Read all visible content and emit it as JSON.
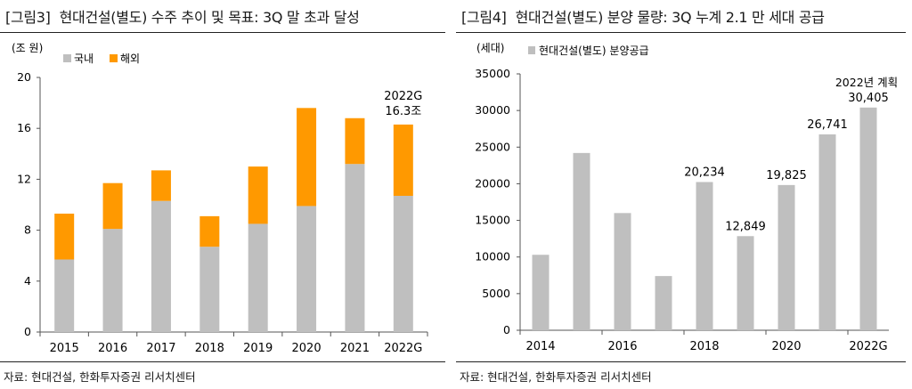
{
  "panels": [
    {
      "figure_number": "[그림3]",
      "title": "현대건설(별도) 수주 추이 및 목표: 3Q 말 초과 달성",
      "source": "자료: 현대건설, 한화투자증권 리서치센터"
    },
    {
      "figure_number": "[그림4]",
      "title": "현대건설(별도) 분양 물량: 3Q 누계 2.1 만 세대 공급",
      "source": "자료: 현대건설, 한화투자증권 리서치센터"
    }
  ],
  "chart_data": [
    {
      "type": "bar",
      "stacked": true,
      "unit_label": "(조 원)",
      "categories": [
        "2015",
        "2016",
        "2017",
        "2018",
        "2019",
        "2020",
        "2021",
        "2022G"
      ],
      "series": [
        {
          "name": "국내",
          "color": "#bfbfbf",
          "values": [
            5.7,
            8.1,
            10.3,
            6.7,
            8.5,
            9.9,
            13.2,
            10.7
          ]
        },
        {
          "name": "해외",
          "color": "#ff9900",
          "values": [
            3.6,
            3.6,
            2.4,
            2.4,
            4.5,
            7.7,
            3.6,
            5.6
          ]
        }
      ],
      "ylim": [
        0,
        20
      ],
      "yticks": [
        0,
        4,
        8,
        12,
        16,
        20
      ],
      "annotations": [
        {
          "category": "2022G",
          "lines": [
            "2022G",
            "16.3조"
          ]
        }
      ],
      "legend": "top-left"
    },
    {
      "type": "bar",
      "unit_label": "(세대)",
      "categories": [
        "2014",
        "2015",
        "2016",
        "2017",
        "2018",
        "2019",
        "2020",
        "2021",
        "2022G"
      ],
      "x_tick_labels": [
        "2014",
        "",
        "2016",
        "",
        "2018",
        "",
        "2020",
        "",
        "2022G"
      ],
      "series": [
        {
          "name": "현대건설(별도)  분양공급",
          "color": "#bfbfbf",
          "values": [
            10300,
            24200,
            16000,
            7400,
            20234,
            12849,
            19825,
            26741,
            30405
          ]
        }
      ],
      "data_labels": [
        "",
        "",
        "",
        "",
        "20,234",
        "12,849",
        "19,825",
        "26,741",
        "30,405"
      ],
      "ylim": [
        0,
        35000
      ],
      "yticks": [
        0,
        5000,
        10000,
        15000,
        20000,
        25000,
        30000,
        35000
      ],
      "annotations": [
        {
          "category": "2022G",
          "text": "2022년  계획"
        }
      ],
      "legend": "top-left"
    }
  ]
}
